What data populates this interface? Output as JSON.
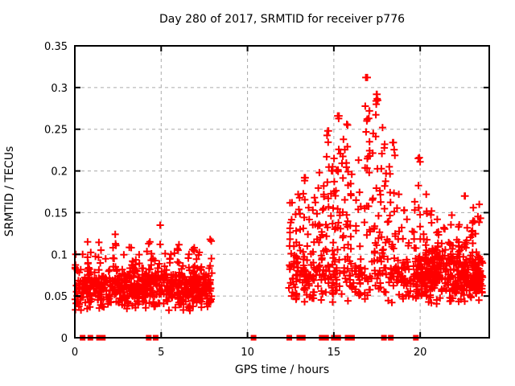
{
  "chart_data": {
    "type": "scatter",
    "title": "Day 280 of 2017, SRMTID for receiver p776",
    "xlabel": "GPS time / hours",
    "ylabel": "SRMTID / TECUs",
    "xlim": [
      0,
      24
    ],
    "ylim": [
      0,
      0.35
    ],
    "xticks": [
      0,
      5,
      10,
      15,
      20
    ],
    "xtick_labels": [
      "0",
      "5",
      "10",
      "15",
      "20"
    ],
    "yticks": [
      0,
      0.05,
      0.1,
      0.15,
      0.2,
      0.25,
      0.3,
      0.35
    ],
    "ytick_labels": [
      "0",
      "0.05",
      "0.1",
      "0.15",
      "0.2",
      "0.25",
      "0.3",
      "0.35"
    ],
    "grid": "dashed",
    "legend": "none",
    "colors": {
      "marker": "#ff0000",
      "grid": "#aaaaaa",
      "axis": "#000000",
      "background": "#ffffff",
      "text": "#000000"
    },
    "marker": {
      "shape": "plus",
      "size": 9,
      "stroke": 2
    },
    "zero_flag_marker": {
      "shape": "filled-square",
      "size": 7
    },
    "zero_flag_hours": [
      0.45,
      0.9,
      1.4,
      1.62,
      4.28,
      4.68,
      10.35,
      12.42,
      13.0,
      13.2,
      14.3,
      14.55,
      15.0,
      15.25,
      15.8,
      16.05,
      17.9,
      18.3,
      19.75
    ],
    "notable_points": [
      [
        16.85,
        0.312
      ],
      [
        17.5,
        0.292
      ],
      [
        17.45,
        0.284
      ],
      [
        17.05,
        0.272
      ],
      [
        15.3,
        0.266
      ],
      [
        15.75,
        0.256
      ],
      [
        14.65,
        0.248
      ],
      [
        18.45,
        0.234
      ],
      [
        19.95,
        0.216
      ],
      [
        13.3,
        0.192
      ],
      [
        22.6,
        0.17
      ],
      [
        4.95,
        0.135
      ],
      [
        0.45,
        0.1
      ]
    ],
    "points_spec": {
      "seed": 20177,
      "bases": [
        {
          "x_range": [
            0.03,
            7.95
          ],
          "count": 640,
          "y_base": 0.032,
          "tri": [
            0.028,
            0.028
          ],
          "tail_prob": 0.12,
          "tail_max": 0.04,
          "y_min": 0.022,
          "y_max": 0.132
        },
        {
          "x_range": [
            12.38,
            23.62
          ],
          "count": 360,
          "y_base": 0.038,
          "tri": [
            0.032,
            0.032
          ],
          "tail_prob": 0.2,
          "tail_max": 0.05,
          "y_min": 0.028,
          "y_max": 0.16
        },
        {
          "x_range": [
            19.6,
            23.62
          ],
          "count": 270,
          "y_base": 0.042,
          "tri": [
            0.034,
            0.034
          ],
          "tail_prob": 0.15,
          "tail_max": 0.045,
          "y_min": 0.03,
          "y_max": 0.155
        }
      ],
      "spikes": [
        [
          0.07,
          0.1,
          8
        ],
        [
          0.8,
          0.115,
          5
        ],
        [
          1.5,
          0.105,
          4
        ],
        [
          2.3,
          0.124,
          5
        ],
        [
          3.35,
          0.108,
          5
        ],
        [
          4.35,
          0.115,
          5
        ],
        [
          4.95,
          0.135,
          4
        ],
        [
          5.5,
          0.1,
          4
        ],
        [
          6.0,
          0.105,
          5
        ],
        [
          6.6,
          0.1,
          4
        ],
        [
          7.0,
          0.108,
          5
        ],
        [
          7.85,
          0.118,
          7
        ],
        [
          12.5,
          0.162,
          12
        ],
        [
          12.75,
          0.148,
          8
        ],
        [
          13.0,
          0.172,
          10
        ],
        [
          13.3,
          0.192,
          10
        ],
        [
          13.6,
          0.156,
          8
        ],
        [
          13.85,
          0.168,
          8
        ],
        [
          14.1,
          0.198,
          10
        ],
        [
          14.35,
          0.182,
          9
        ],
        [
          14.65,
          0.248,
          12
        ],
        [
          14.9,
          0.205,
          10
        ],
        [
          15.1,
          0.215,
          10
        ],
        [
          15.3,
          0.266,
          12
        ],
        [
          15.55,
          0.238,
          10
        ],
        [
          15.75,
          0.255,
          10
        ],
        [
          16.0,
          0.196,
          9
        ],
        [
          16.25,
          0.165,
          8
        ],
        [
          16.5,
          0.213,
          9
        ],
        [
          16.85,
          0.312,
          12
        ],
        [
          17.05,
          0.272,
          10
        ],
        [
          17.3,
          0.245,
          9
        ],
        [
          17.5,
          0.292,
          11
        ],
        [
          17.75,
          0.252,
          9
        ],
        [
          17.95,
          0.232,
          9
        ],
        [
          18.2,
          0.205,
          8
        ],
        [
          18.45,
          0.234,
          9
        ],
        [
          18.7,
          0.172,
          8
        ],
        [
          19.0,
          0.153,
          7
        ],
        [
          19.3,
          0.142,
          7
        ],
        [
          19.6,
          0.163,
          7
        ],
        [
          19.95,
          0.215,
          9
        ],
        [
          20.3,
          0.172,
          7
        ],
        [
          20.65,
          0.152,
          7
        ],
        [
          21.0,
          0.142,
          7
        ],
        [
          21.4,
          0.132,
          6
        ],
        [
          21.8,
          0.147,
          6
        ],
        [
          22.2,
          0.133,
          6
        ],
        [
          22.6,
          0.17,
          7
        ],
        [
          23.0,
          0.156,
          6
        ],
        [
          23.35,
          0.16,
          6
        ]
      ],
      "spike_jitter_hours": 0.18,
      "spike_y_span": [
        0.3,
        1.0
      ]
    }
  }
}
